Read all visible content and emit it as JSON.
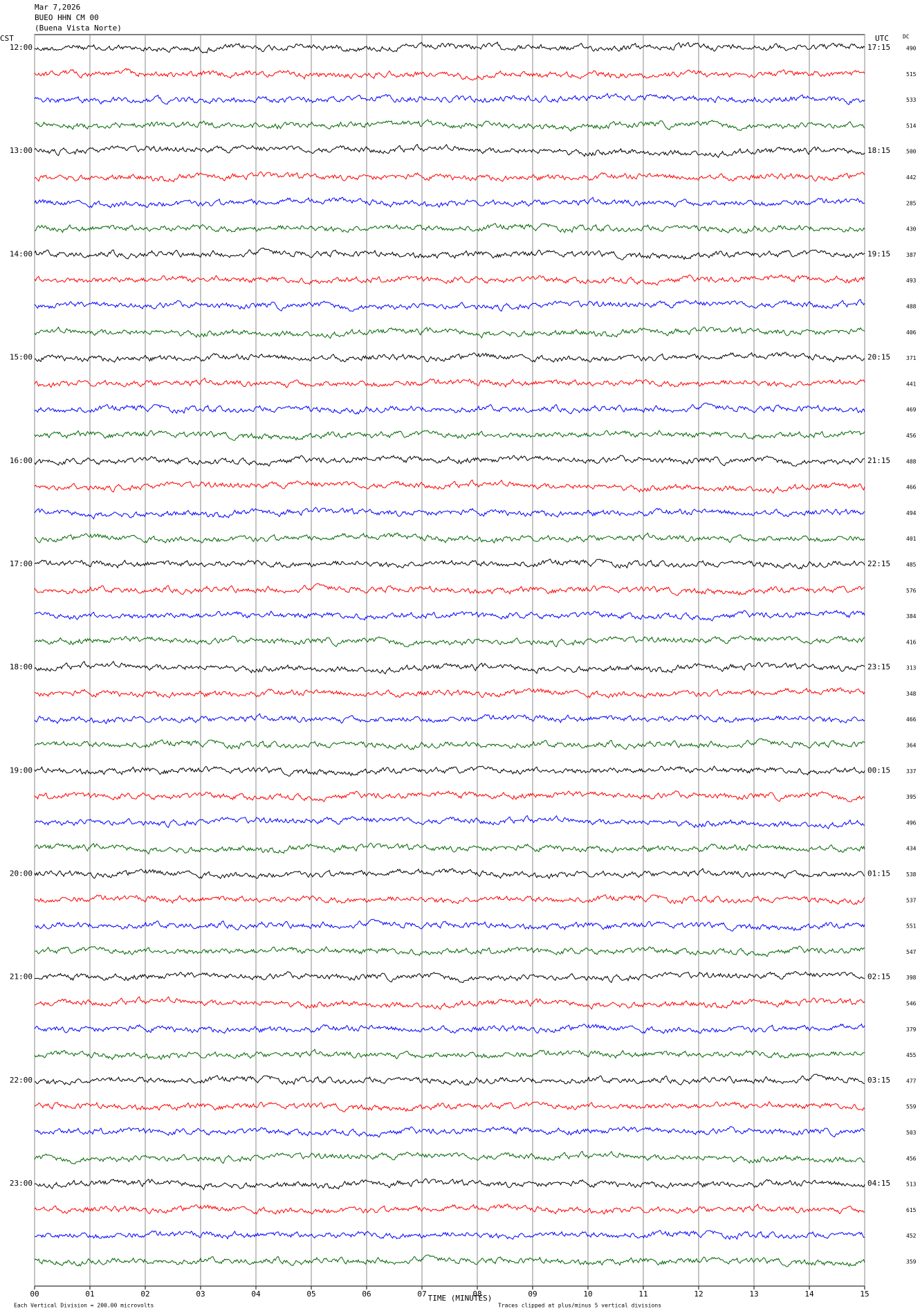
{
  "chart_data": {
    "type": "helicorder",
    "title": [
      "Mar 7,2026",
      "BUEO HHN CM 00",
      "(Buena Vista Norte)"
    ],
    "left_axis_label": "CST",
    "right_axis_label": "UTC",
    "dc_label": "DC",
    "x_label": "TIME (MINUTES)",
    "xlim": [
      0,
      15
    ],
    "xticks": [
      {
        "value": 0,
        "label": "00"
      },
      {
        "value": 1,
        "label": "01"
      },
      {
        "value": 2,
        "label": "02"
      },
      {
        "value": 3,
        "label": "03"
      },
      {
        "value": 4,
        "label": "04"
      },
      {
        "value": 5,
        "label": "05"
      },
      {
        "value": 6,
        "label": "06"
      },
      {
        "value": 7,
        "label": "07"
      },
      {
        "value": 8,
        "label": "08"
      },
      {
        "value": 9,
        "label": "09"
      },
      {
        "value": 10,
        "label": "10"
      },
      {
        "value": 11,
        "label": "11"
      },
      {
        "value": 12,
        "label": "12"
      },
      {
        "value": 13,
        "label": "13"
      },
      {
        "value": 14,
        "label": "14"
      },
      {
        "value": 15,
        "label": "15"
      }
    ],
    "cst_times": [
      "12:00",
      "13:00",
      "14:00",
      "15:00",
      "16:00",
      "17:00",
      "18:00",
      "19:00",
      "20:00",
      "21:00",
      "22:00",
      "23:00"
    ],
    "utc_times": [
      "17:15",
      "18:15",
      "19:15",
      "20:15",
      "21:15",
      "22:15",
      "23:15",
      "00:15",
      "01:15",
      "02:15",
      "03:15",
      "04:15"
    ],
    "dc_values": [
      490,
      515,
      533,
      514,
      500,
      442,
      285,
      430,
      387,
      493,
      488,
      406,
      371,
      441,
      469,
      456,
      488,
      466,
      494,
      401,
      485,
      576,
      384,
      416,
      313,
      348,
      466,
      364,
      337,
      395,
      496,
      434,
      538,
      537,
      551,
      547,
      398,
      546,
      379,
      455,
      477,
      559,
      503,
      456,
      513,
      615,
      452,
      359
    ],
    "colors": [
      "#000000",
      "#ff0000",
      "#0000ff",
      "#006600"
    ],
    "footer_left": "Each Vertical Division =  200.00 microvolts",
    "footer_right": "Traces clipped at plus/minus 5 vertical divisions"
  }
}
